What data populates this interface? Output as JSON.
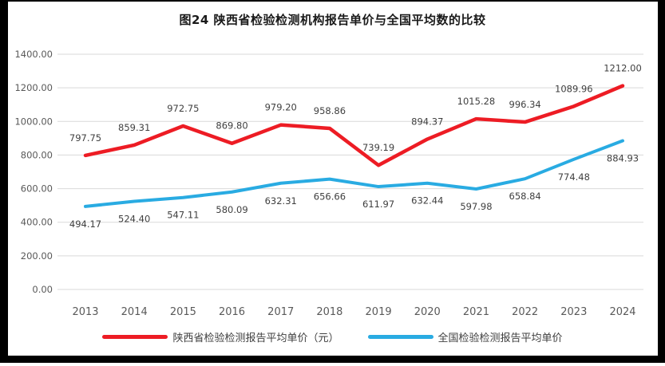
{
  "title": "图24 陕西省检验检测机构报告单价与全国平均数的比较",
  "chart_data": {
    "type": "line",
    "title": "图24 陕西省检验检测机构报告单价与全国平均数的比较",
    "categories": [
      "2013",
      "2014",
      "2015",
      "2016",
      "2017",
      "2018",
      "2019",
      "2020",
      "2021",
      "2022",
      "2023",
      "2024"
    ],
    "series": [
      {
        "name": "陕西省检验检测报告平均单价（元）",
        "color": "#ED1C24",
        "label_position": "above",
        "values": [
          797.75,
          859.31,
          972.75,
          869.8,
          979.2,
          958.86,
          739.19,
          894.37,
          1015.28,
          996.34,
          1089.96,
          1212.0
        ]
      },
      {
        "name": "全国检验检测报告平均单价",
        "color": "#29ABE2",
        "label_position": "below",
        "values": [
          494.17,
          524.4,
          547.11,
          580.09,
          632.31,
          656.66,
          611.97,
          632.44,
          597.98,
          658.84,
          774.48,
          884.93
        ]
      }
    ],
    "xlabel": "",
    "ylabel": "",
    "ylim": [
      0,
      1400
    ],
    "ytick_step": 200,
    "ytick_labels": [
      "0.00",
      "200.00",
      "400.00",
      "600.00",
      "800.00",
      "1000.00",
      "1200.00",
      "1400.00"
    ],
    "grid": true,
    "grid_color": "#D9D9D9",
    "axis_text_color": "#595959",
    "data_label_color": "#3f3f3f",
    "frame_color": "#000000",
    "legend_position": "bottom"
  }
}
